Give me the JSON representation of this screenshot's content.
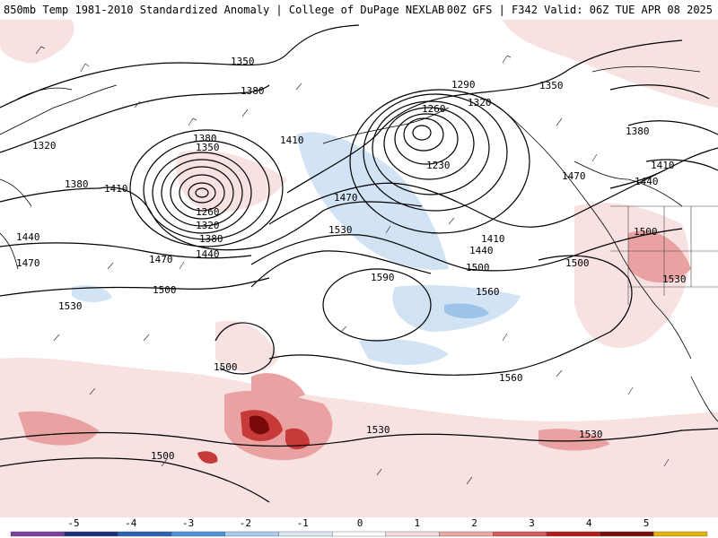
{
  "header": {
    "title_left": "850mb Temp 1981-2010 Standardized Anomaly | College of DuPage NEXLAB",
    "title_right": "00Z GFS | F342 Valid: 06Z TUE APR 08 2025"
  },
  "contour_labels": [
    "1350",
    "1380",
    "1320",
    "1380",
    "1410",
    "1380",
    "1350",
    "1260",
    "1320",
    "1380",
    "1440",
    "1470",
    "1440",
    "1470",
    "1500",
    "1500",
    "1500",
    "1290",
    "1320",
    "1260",
    "1230",
    "1350",
    "1410",
    "1470",
    "1530",
    "1590",
    "1410",
    "1440",
    "1500",
    "1560",
    "1560",
    "1530",
    "1530",
    "1500",
    "1380",
    "1410",
    "1440",
    "1470",
    "1500",
    "1530",
    "1530"
  ],
  "colorbar": {
    "ticks": [
      "-5",
      "-4",
      "-3",
      "-2",
      "-1",
      "0",
      "1",
      "2",
      "3",
      "4",
      "5"
    ],
    "colors": [
      "#7b3fa0",
      "#1a2f7a",
      "#2b63b3",
      "#4a95d6",
      "#a9cdee",
      "#dbe9f6",
      "#ffffff",
      "#f6dcdc",
      "#eca6a6",
      "#d85a5a",
      "#b51b1b",
      "#7a0a0a",
      "#e8b400"
    ]
  }
}
